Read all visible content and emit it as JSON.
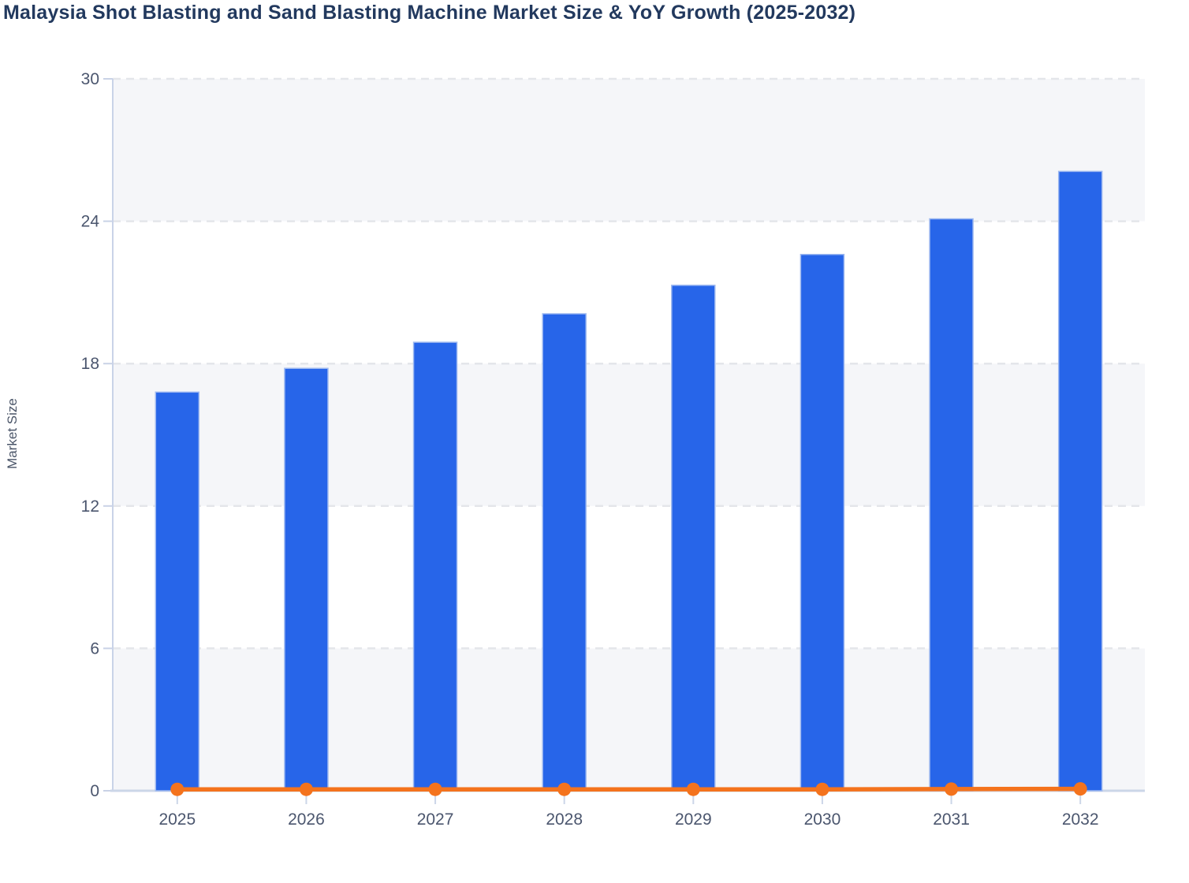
{
  "page": {
    "title": "Malaysia Shot Blasting and Sand Blasting Machine Market Size & YoY Growth (2025-2032)"
  },
  "chart_data": {
    "type": "bar",
    "title": "Malaysia Shot Blasting and Sand Blasting Machine Market Size & YoY Growth (2025-2032)",
    "xlabel": "",
    "ylabel": "Market Size",
    "categories": [
      "2025",
      "2026",
      "2027",
      "2028",
      "2029",
      "2030",
      "2031",
      "2032"
    ],
    "series": [
      {
        "name": "Market Size",
        "type": "bar",
        "values": [
          16.8,
          17.8,
          18.9,
          20.1,
          21.3,
          22.6,
          24.1,
          26.1
        ],
        "color": "#2765e9",
        "border_color": "#9db8f0"
      },
      {
        "name": "YoY Growth",
        "type": "line",
        "values": [
          0.06,
          0.06,
          0.06,
          0.06,
          0.06,
          0.06,
          0.07,
          0.08
        ],
        "color": "#f4731d"
      }
    ],
    "ylim": [
      0,
      30
    ],
    "yticks": [
      0,
      6,
      12,
      18,
      24,
      30
    ],
    "grid": "horizontal-dashed",
    "legend_position": "none",
    "plot_band_colors": [
      "#f5f6f9",
      "#ffffff"
    ]
  },
  "style": {
    "title_color": "#22395e",
    "tick_label_color": "#4b566e",
    "axis_line_color": "#c9d3e8",
    "x_axis_line_color": "#ccd6e8",
    "gridline_color": "#e4e6ea",
    "y_tick_color": "#c9d2e6",
    "bar_fill": "#2765e9",
    "bar_border": "#9db8f0",
    "line_color": "#f4731d"
  }
}
